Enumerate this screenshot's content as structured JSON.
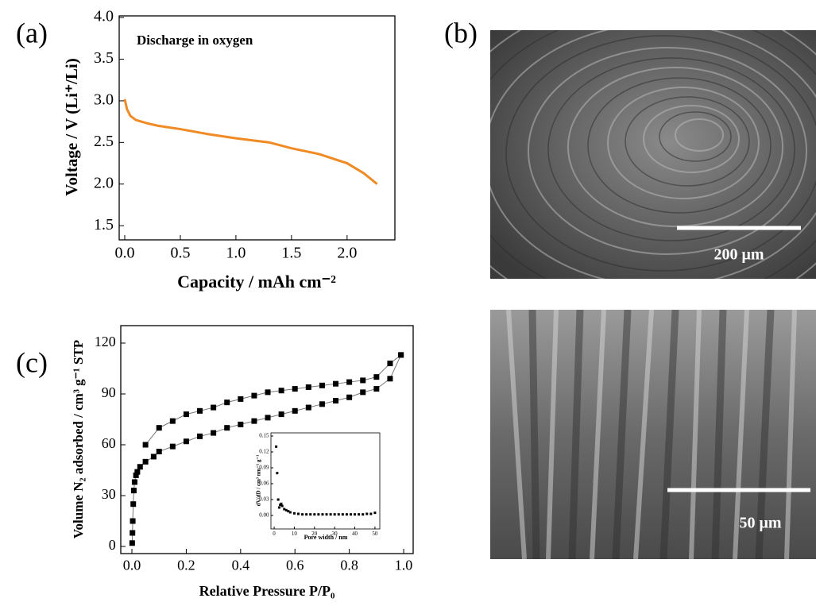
{
  "chart_data": [
    {
      "type": "line",
      "panel_label": "(a)",
      "annotation": "Discharge in oxygen",
      "xlabel": "Capacity / mAh cm⁻²",
      "ylabel": "Voltage / V (Li⁺/Li)",
      "x": [
        0,
        0.02,
        0.05,
        0.1,
        0.2,
        0.3,
        0.5,
        0.75,
        1.0,
        1.3,
        1.5,
        1.75,
        2.0,
        2.15,
        2.27
      ],
      "values": [
        3.02,
        2.9,
        2.82,
        2.77,
        2.73,
        2.7,
        2.66,
        2.6,
        2.55,
        2.5,
        2.43,
        2.36,
        2.25,
        2.13,
        2.0
      ],
      "color": "#f08a24",
      "xlim": [
        -0.05,
        2.43
      ],
      "ylim": [
        1.33,
        4.02
      ],
      "xticks": [
        {
          "value": 0,
          "label": "0.0"
        },
        0.5,
        {
          "value": 1,
          "label": "1.0"
        },
        1.5,
        {
          "value": 2,
          "label": "2.0"
        }
      ],
      "yticks": [
        1.5,
        {
          "value": 2,
          "label": "2.0"
        },
        2.5,
        {
          "value": 3,
          "label": "3.0"
        },
        3.5,
        {
          "value": 4,
          "label": "4.0"
        }
      ]
    },
    {
      "type": "scatter",
      "panel_label": "(c)",
      "connect": true,
      "xlabel": "Relative Pressure  P/P₀",
      "ylabel": "Volume N₂ adsorbed / cm³ g⁻¹ STP",
      "series": [
        {
          "color": "#000000",
          "x": [
            0.001,
            0.002,
            0.003,
            0.005,
            0.007,
            0.01,
            0.015,
            0.02,
            0.03,
            0.05,
            0.08,
            0.1,
            0.15,
            0.2,
            0.25,
            0.3,
            0.35,
            0.4,
            0.45,
            0.5,
            0.55,
            0.6,
            0.65,
            0.7,
            0.75,
            0.8,
            0.85,
            0.9,
            0.95,
            0.99
          ],
          "values": [
            2,
            8,
            15,
            25,
            33,
            38,
            42,
            44,
            47,
            50,
            53,
            56,
            59,
            62,
            65,
            67,
            70,
            72,
            74,
            76,
            78,
            80,
            82,
            84,
            86,
            88,
            91,
            93,
            99,
            113
          ]
        },
        {
          "color": "#000000",
          "x": [
            0.99,
            0.95,
            0.9,
            0.85,
            0.8,
            0.75,
            0.7,
            0.65,
            0.6,
            0.55,
            0.5,
            0.45,
            0.4,
            0.35,
            0.3,
            0.25,
            0.2,
            0.15,
            0.1,
            0.05
          ],
          "values": [
            113,
            108,
            100,
            98,
            97,
            96,
            95,
            94,
            93,
            92,
            91,
            89,
            87,
            85,
            82,
            80,
            78,
            74,
            70,
            60
          ]
        }
      ],
      "xlim": [
        -0.041,
        1.035
      ],
      "ylim": [
        -4.2,
        130.3
      ],
      "xticks": [
        {
          "value": 0,
          "label": "0.0"
        },
        0.2,
        0.4,
        0.6,
        0.8,
        {
          "value": 1,
          "label": "1.0"
        }
      ],
      "yticks": [
        0,
        30,
        60,
        90,
        120
      ]
    },
    {
      "type": "scatter",
      "xlabel": "Pore width / nm",
      "ylabel": "dV/dD / cm³ nm⁻¹ g⁻¹",
      "series": [
        {
          "color": "#000000",
          "x": [
            1,
            1.5,
            2,
            2.5,
            3,
            3.5,
            4,
            5,
            6,
            7,
            8,
            10,
            12,
            14,
            16,
            18,
            20,
            22,
            24,
            26,
            28,
            30,
            32,
            34,
            36,
            38,
            40,
            42,
            44,
            46,
            48,
            50
          ],
          "values": [
            0.13,
            0.08,
            0.03,
            0.015,
            0.02,
            0.022,
            0.018,
            0.012,
            0.01,
            0.008,
            0.006,
            0.004,
            0.003,
            0.002,
            0.002,
            0.002,
            0.002,
            0.002,
            0.002,
            0.002,
            0.002,
            0.002,
            0.002,
            0.002,
            0.002,
            0.002,
            0.002,
            0.002,
            0.002,
            0.003,
            0.003,
            0.005
          ]
        }
      ],
      "xlim": [
        -1.6,
        52.4
      ],
      "ylim": [
        -0.0255,
        0.156
      ],
      "xticks": [
        0,
        10,
        20,
        30,
        40,
        50
      ],
      "yticks": [
        {
          "value": 0,
          "label": "0.00"
        },
        {
          "value": 0.03,
          "label": "0.03"
        },
        {
          "value": 0.06,
          "label": "0.06"
        },
        {
          "value": 0.09,
          "label": "0.09"
        },
        {
          "value": 0.12,
          "label": "0.12"
        },
        {
          "value": 0.15,
          "label": "0.15"
        }
      ]
    }
  ],
  "images": {
    "panel_label": "(b)",
    "top_scale": "200 μm",
    "bottom_scale": "50 μm"
  }
}
